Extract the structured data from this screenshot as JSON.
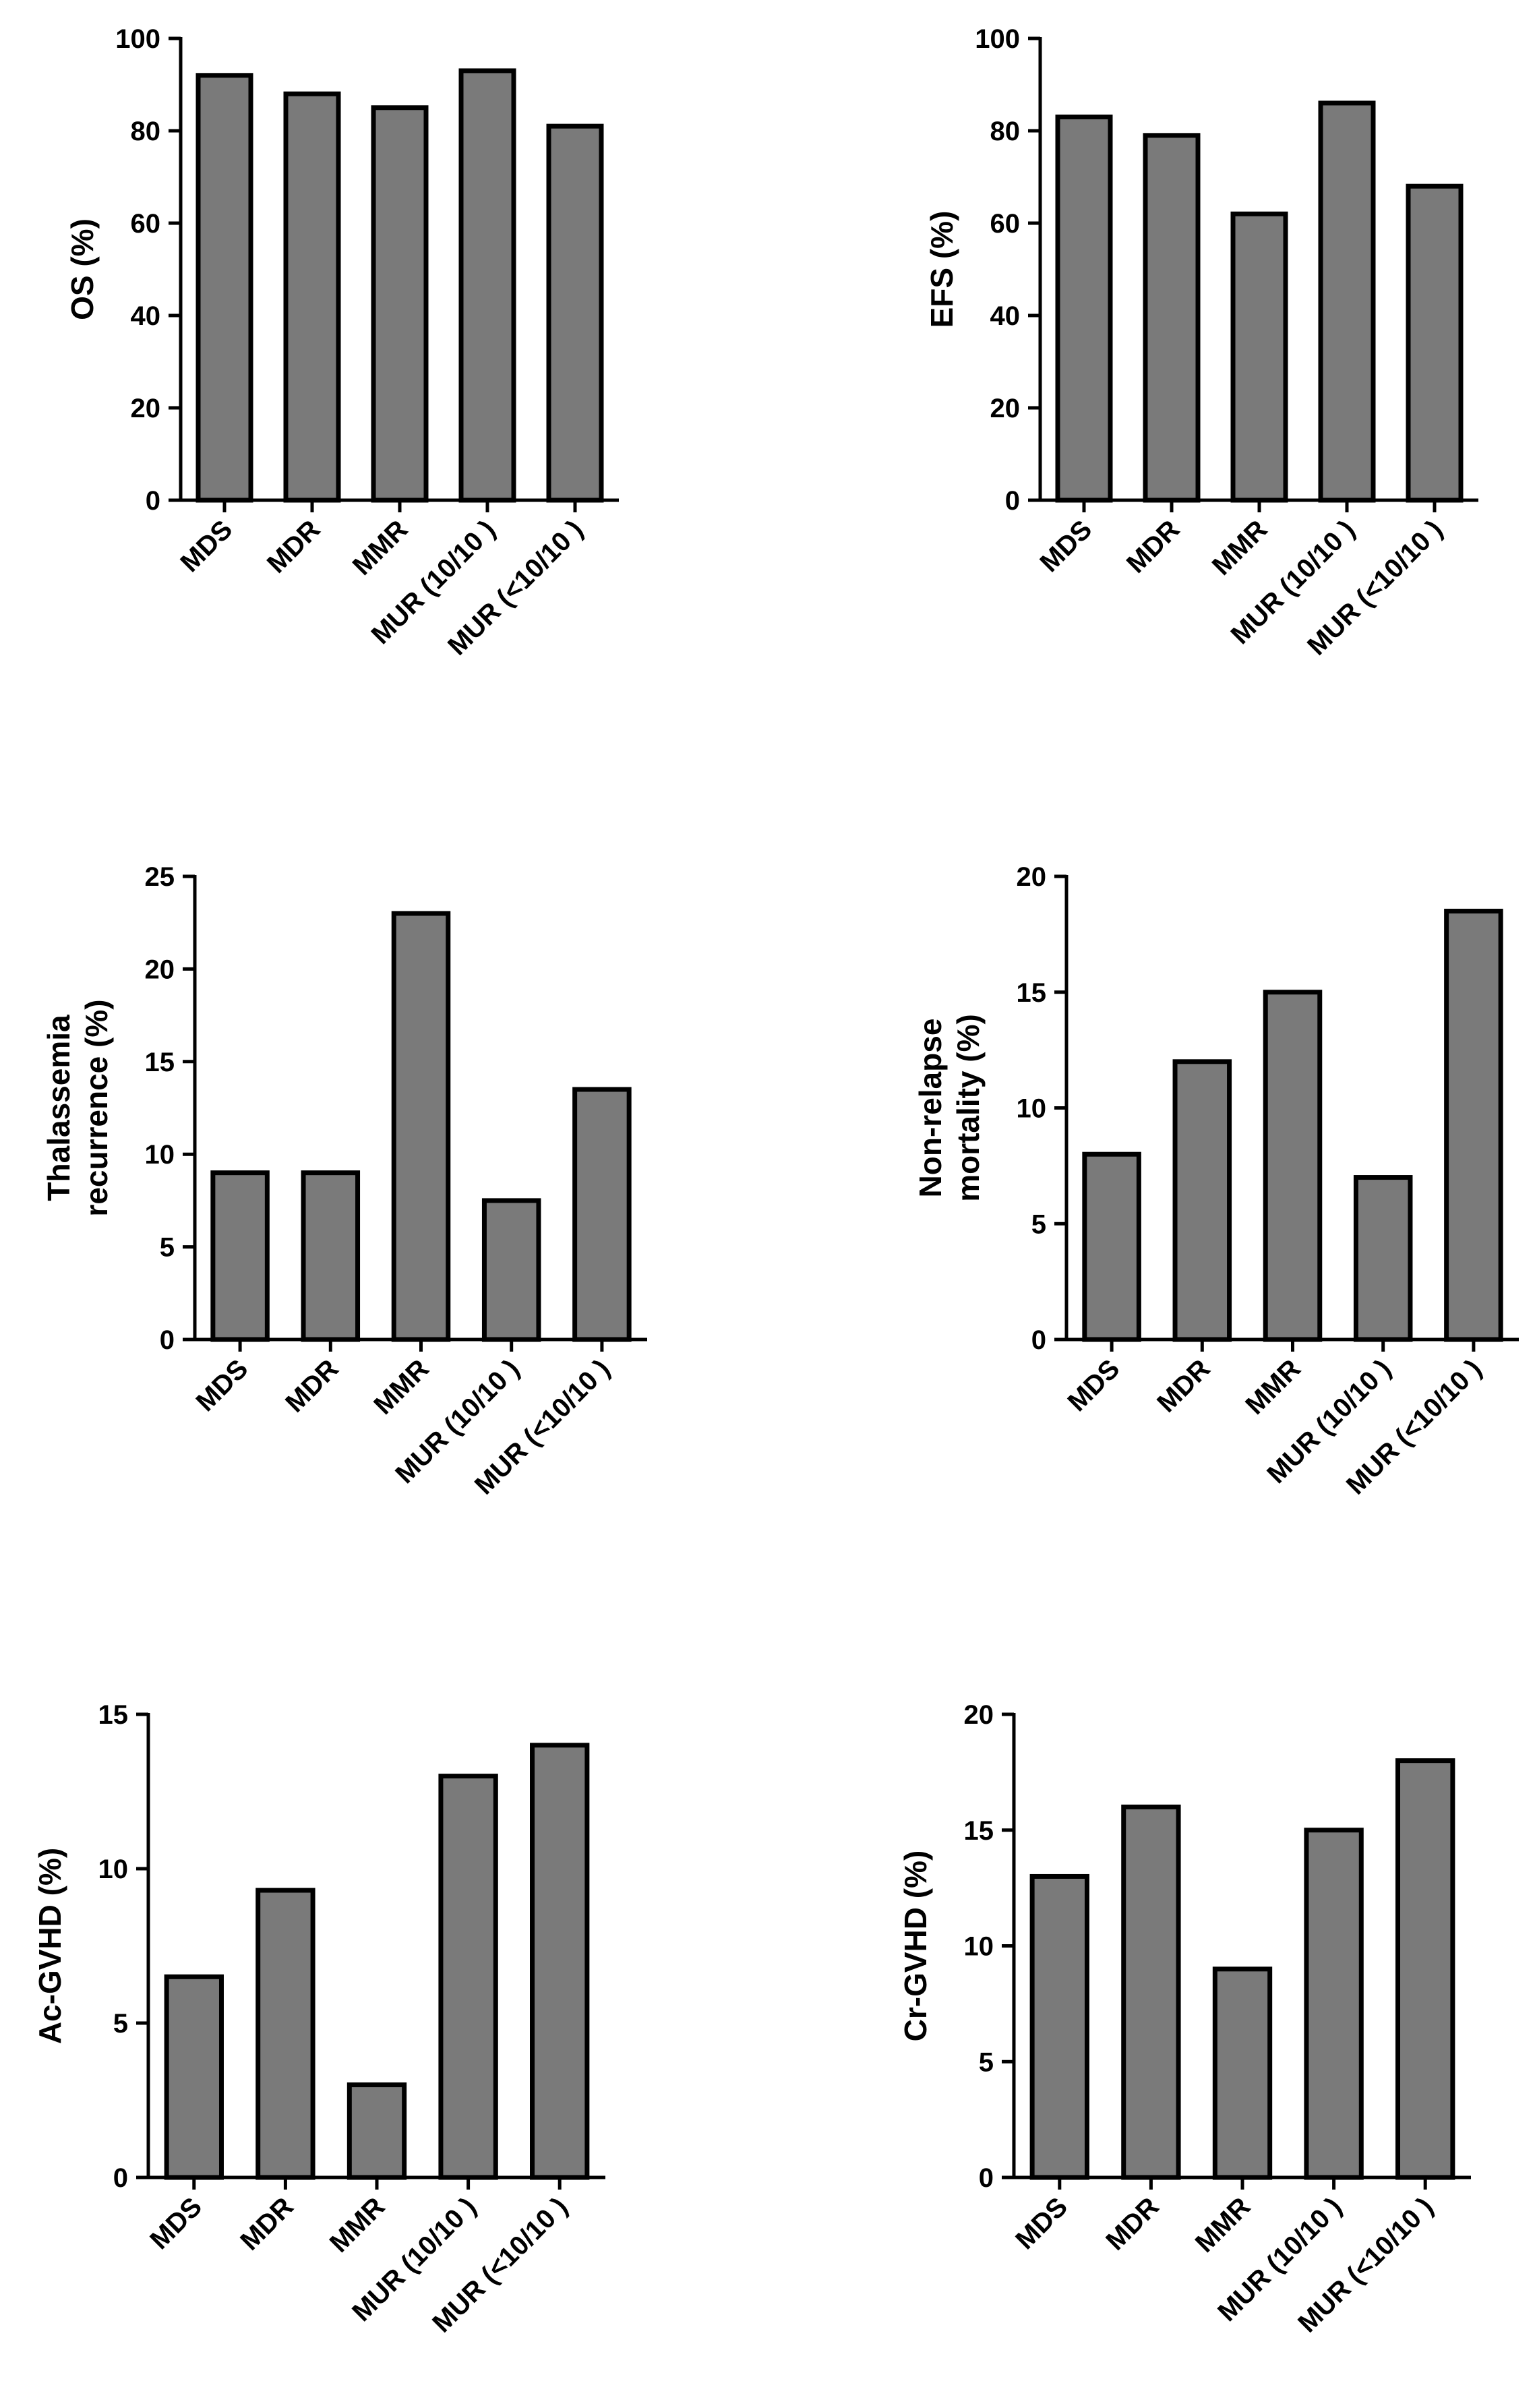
{
  "chart_data": [
    {
      "type": "bar",
      "title": "",
      "xlabel": "",
      "ylabel": [
        "OS (%)"
      ],
      "categories": [
        "MDS",
        "MDR",
        "MMR",
        "MUR (10/10 )",
        "MUR (<10/10 )"
      ],
      "values": [
        92,
        88,
        85,
        93,
        81
      ],
      "ylim": [
        0,
        100
      ],
      "yticks": [
        0,
        20,
        40,
        60,
        80,
        100
      ],
      "grid": false,
      "bar_color": "#7a7a7a",
      "edge_color": "#000000"
    },
    {
      "type": "bar",
      "title": "",
      "xlabel": "",
      "ylabel": [
        "EFS (%)"
      ],
      "categories": [
        "MDS",
        "MDR",
        "MMR",
        "MUR (10/10 )",
        "MUR (<10/10 )"
      ],
      "values": [
        83,
        79,
        62,
        86,
        68
      ],
      "ylim": [
        0,
        100
      ],
      "yticks": [
        0,
        20,
        40,
        60,
        80,
        100
      ],
      "grid": false,
      "bar_color": "#7a7a7a",
      "edge_color": "#000000"
    },
    {
      "type": "bar",
      "title": "",
      "xlabel": "",
      "ylabel": [
        "Thalassemia",
        "recurrence (%)"
      ],
      "categories": [
        "MDS",
        "MDR",
        "MMR",
        "MUR (10/10 )",
        "MUR (<10/10 )"
      ],
      "values": [
        9,
        9,
        23,
        7.5,
        13.5
      ],
      "ylim": [
        0,
        25
      ],
      "yticks": [
        0,
        5,
        10,
        15,
        20,
        25
      ],
      "grid": false,
      "bar_color": "#7a7a7a",
      "edge_color": "#000000"
    },
    {
      "type": "bar",
      "title": "",
      "xlabel": "",
      "ylabel": [
        "Non-relapse",
        "mortality (%)"
      ],
      "categories": [
        "MDS",
        "MDR",
        "MMR",
        "MUR (10/10 )",
        "MUR (<10/10 )"
      ],
      "values": [
        8,
        12,
        15,
        7,
        18.5
      ],
      "ylim": [
        0,
        20
      ],
      "yticks": [
        0,
        5,
        10,
        15,
        20
      ],
      "grid": false,
      "bar_color": "#7a7a7a",
      "edge_color": "#000000"
    },
    {
      "type": "bar",
      "title": "",
      "xlabel": "",
      "ylabel": [
        "Ac-GVHD (%)"
      ],
      "categories": [
        "MDS",
        "MDR",
        "MMR",
        "MUR (10/10 )",
        "MUR (<10/10 )"
      ],
      "values": [
        6.5,
        9.3,
        3,
        13,
        14
      ],
      "ylim": [
        0,
        15
      ],
      "yticks": [
        0,
        5,
        10,
        15
      ],
      "grid": false,
      "bar_color": "#7a7a7a",
      "edge_color": "#000000"
    },
    {
      "type": "bar",
      "title": "",
      "xlabel": "",
      "ylabel": [
        "Cr-GVHD (%)"
      ],
      "categories": [
        "MDS",
        "MDR",
        "MMR",
        "MUR (10/10 )",
        "MUR (<10/10 )"
      ],
      "values": [
        13,
        16,
        9,
        15,
        18
      ],
      "ylim": [
        0,
        20
      ],
      "yticks": [
        0,
        5,
        10,
        15,
        20
      ],
      "grid": false,
      "bar_color": "#7a7a7a",
      "edge_color": "#000000"
    }
  ]
}
